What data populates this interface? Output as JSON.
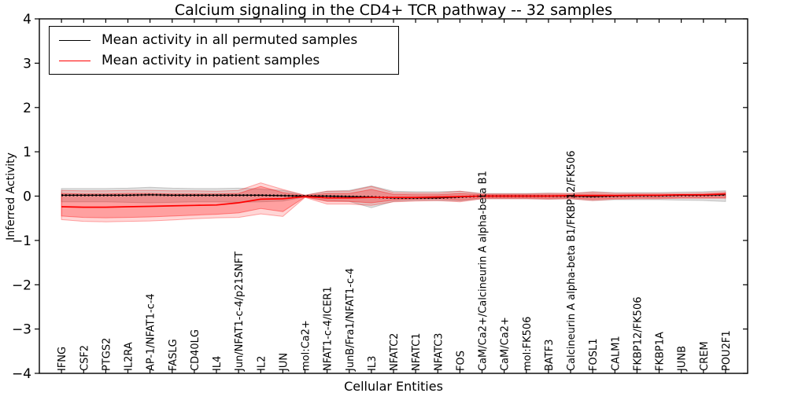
{
  "chart_data": {
    "type": "line",
    "title": "Calcium signaling in the CD4+ TCR pathway -- 32 samples",
    "xlabel": "Cellular Entities",
    "ylabel": "Inferred Activity",
    "ylim": [
      -4,
      4
    ],
    "yticks": [
      -4,
      -3,
      -2,
      -1,
      0,
      1,
      2,
      3,
      4
    ],
    "grid": false,
    "legend_position": "upper-left",
    "categories": [
      "IFNG",
      "CSF2",
      "PTGS2",
      "IL2RA",
      "AP-1/NFAT1-c-4",
      "FASLG",
      "CD40LG",
      "IL4",
      "Jun/NFAT1-c-4/p21SNFT",
      "IL2",
      "JUN",
      "mol:Ca2+",
      "NFAT1-c-4/ICER1",
      "JunB/Fra1/NFAT1-c-4",
      "IL3",
      "NFATC2",
      "NFATC1",
      "NFATC3",
      "FOS",
      "CaM/Ca2+/Calcineurin A alpha-beta B1",
      "CaM/Ca2+",
      "mol:FK506",
      "BATF3",
      "Calcineurin A alpha-beta B1/FKBP12/FK506",
      "FOSL1",
      "CALM1",
      "FKBP12/FK506",
      "FKBP1A",
      "JUNB",
      "CREM",
      "POU2F1"
    ],
    "series": [
      {
        "name": "Mean activity in all permuted samples",
        "color": "#000000",
        "style": "dotted",
        "values": [
          0.02,
          0.02,
          0.02,
          0.02,
          0.03,
          0.02,
          0.02,
          0.02,
          0.02,
          0.02,
          0.01,
          0.0,
          0.0,
          -0.01,
          -0.02,
          -0.04,
          -0.04,
          -0.04,
          -0.02,
          0.0,
          0.0,
          0.0,
          0.0,
          0.0,
          -0.01,
          0.0,
          0.01,
          0.01,
          0.02,
          0.02,
          0.03
        ]
      },
      {
        "name": "Mean activity in patient samples",
        "color": "#ff0000",
        "style": "solid",
        "values": [
          -0.24,
          -0.25,
          -0.25,
          -0.24,
          -0.23,
          -0.22,
          -0.21,
          -0.2,
          -0.15,
          -0.07,
          -0.06,
          -0.01,
          -0.04,
          -0.04,
          -0.03,
          -0.03,
          -0.03,
          -0.02,
          -0.01,
          0.0,
          0.0,
          0.0,
          0.0,
          0.01,
          0.01,
          0.01,
          0.02,
          0.02,
          0.03,
          0.03,
          0.05
        ]
      }
    ],
    "bands": [
      {
        "name": "permuted-range",
        "color": "#909090",
        "fill_opacity": 0.28,
        "edge_opacity": 0.45,
        "upper": [
          0.17,
          0.17,
          0.17,
          0.18,
          0.2,
          0.18,
          0.17,
          0.17,
          0.18,
          0.16,
          0.13,
          0.02,
          0.11,
          0.13,
          0.23,
          0.11,
          0.1,
          0.1,
          0.11,
          0.06,
          0.06,
          0.06,
          0.07,
          0.06,
          0.1,
          0.08,
          0.08,
          0.08,
          0.09,
          0.1,
          0.12
        ],
        "lower": [
          -0.13,
          -0.13,
          -0.13,
          -0.14,
          -0.15,
          -0.14,
          -0.13,
          -0.13,
          -0.14,
          -0.13,
          -0.11,
          -0.02,
          -0.1,
          -0.12,
          -0.26,
          -0.12,
          -0.1,
          -0.1,
          -0.11,
          -0.06,
          -0.06,
          -0.06,
          -0.07,
          -0.06,
          -0.1,
          -0.08,
          -0.08,
          -0.08,
          -0.09,
          -0.1,
          -0.12
        ]
      },
      {
        "name": "patient-range-outer",
        "color": "#ff0000",
        "fill_opacity": 0.16,
        "edge_opacity": 0.32,
        "upper": [
          0.13,
          0.12,
          0.12,
          0.13,
          0.13,
          0.12,
          0.12,
          0.11,
          0.13,
          0.3,
          0.15,
          0.02,
          0.11,
          0.11,
          0.22,
          0.08,
          0.07,
          0.07,
          0.11,
          0.05,
          0.05,
          0.05,
          0.06,
          0.06,
          0.09,
          0.06,
          0.06,
          0.06,
          0.06,
          0.07,
          0.09
        ],
        "lower": [
          -0.53,
          -0.57,
          -0.58,
          -0.57,
          -0.56,
          -0.54,
          -0.51,
          -0.49,
          -0.48,
          -0.4,
          -0.46,
          -0.03,
          -0.18,
          -0.18,
          -0.21,
          -0.13,
          -0.11,
          -0.1,
          -0.13,
          -0.06,
          -0.06,
          -0.06,
          -0.07,
          -0.06,
          -0.1,
          -0.07,
          -0.06,
          -0.06,
          -0.05,
          -0.05,
          -0.05
        ]
      },
      {
        "name": "patient-range-inner",
        "color": "#ff0000",
        "fill_opacity": 0.25,
        "edge_opacity": 0.38,
        "upper": [
          0.06,
          0.05,
          0.05,
          0.06,
          0.06,
          0.05,
          0.05,
          0.05,
          0.06,
          0.22,
          0.08,
          0.01,
          0.06,
          0.06,
          0.15,
          0.04,
          0.03,
          0.03,
          0.06,
          0.03,
          0.03,
          0.03,
          0.03,
          0.03,
          0.05,
          0.03,
          0.03,
          0.03,
          0.03,
          0.04,
          0.06
        ],
        "lower": [
          -0.45,
          -0.48,
          -0.49,
          -0.48,
          -0.47,
          -0.45,
          -0.43,
          -0.41,
          -0.38,
          -0.28,
          -0.35,
          -0.02,
          -0.12,
          -0.12,
          -0.15,
          -0.09,
          -0.07,
          -0.06,
          -0.09,
          -0.04,
          -0.04,
          -0.04,
          -0.05,
          -0.04,
          -0.07,
          -0.05,
          -0.04,
          -0.04,
          -0.03,
          -0.03,
          -0.03
        ]
      }
    ],
    "colors": {
      "frame": "#000000",
      "background": "#ffffff"
    }
  }
}
